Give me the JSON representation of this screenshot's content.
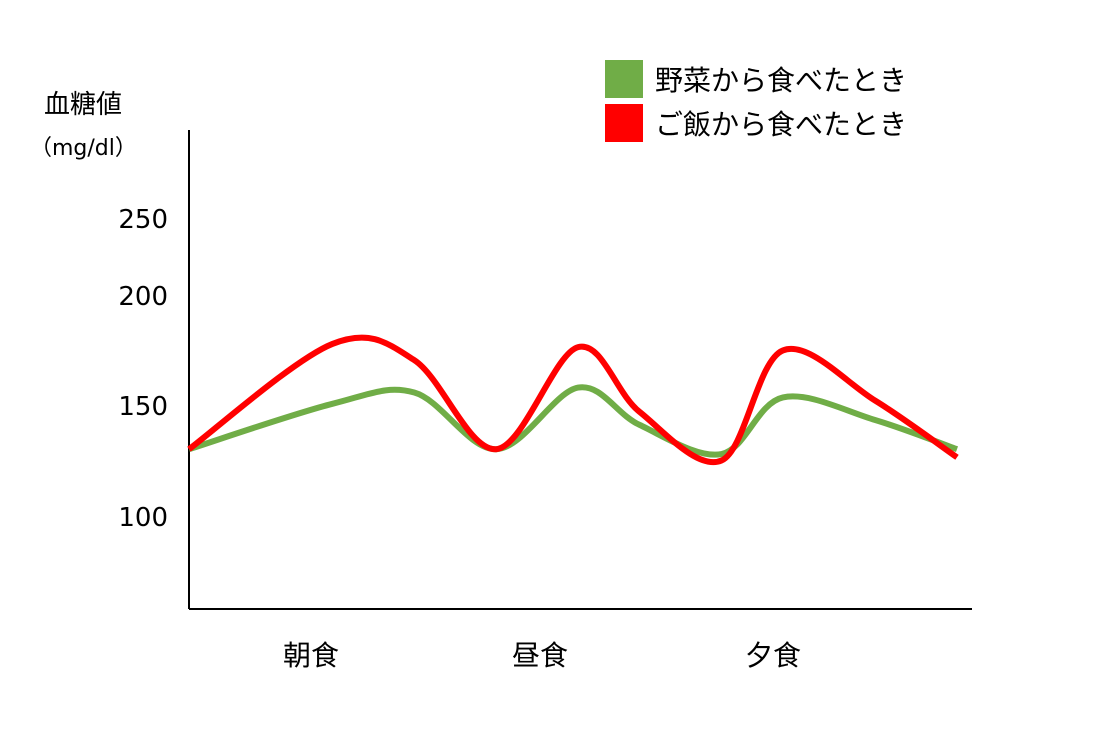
{
  "chart_data": {
    "type": "line",
    "ylabel": "血糖値",
    "yunit": "（mg/dl）",
    "ylim": [
      60,
      280
    ],
    "yticks": [
      100,
      150,
      200,
      250
    ],
    "categories": [
      "朝食",
      "昼食",
      "夕食"
    ],
    "grid": false,
    "legend_position": "top-right",
    "series": [
      {
        "name": "野菜から食べたとき",
        "color": "#70ad47",
        "x": [
          0,
          0.28,
          0.44,
          0.6,
          0.76,
          0.88,
          1.04,
          1.16,
          1.34,
          1.5
        ],
        "y": [
          140,
          168,
          175,
          140,
          178,
          155,
          137,
          172,
          158,
          140
        ]
      },
      {
        "name": "ご飯から食べたとき",
        "color": "#ff0000",
        "x": [
          0,
          0.28,
          0.44,
          0.6,
          0.76,
          0.88,
          1.04,
          1.16,
          1.34,
          1.5
        ],
        "y": [
          140,
          205,
          195,
          140,
          203,
          163,
          133,
          201,
          170,
          135
        ]
      }
    ]
  }
}
